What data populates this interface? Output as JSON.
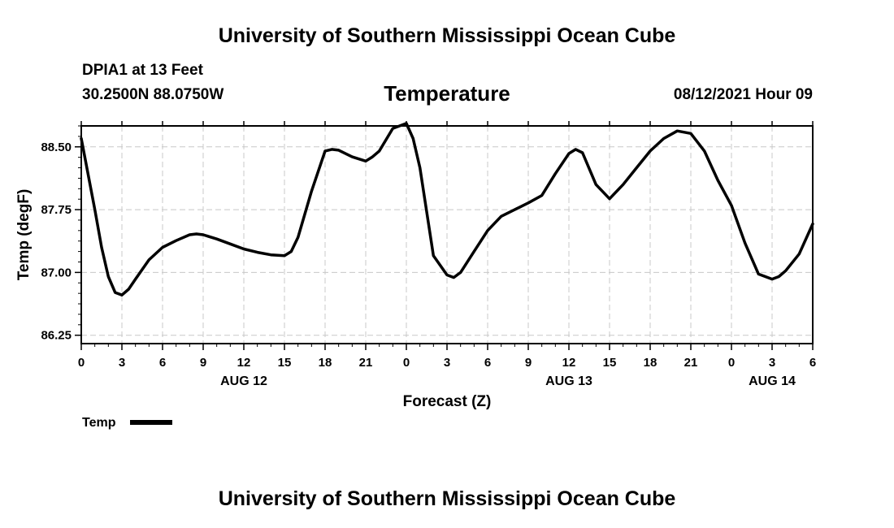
{
  "header": {
    "title": "University of Southern Mississippi Ocean Cube"
  },
  "station": {
    "name": "DPIA1 at 13 Feet",
    "coords": "30.2500N  88.0750W"
  },
  "issued": "08/12/2021 Hour 09",
  "footer": {
    "title": "University of Southern Mississippi Ocean Cube"
  },
  "chart_data": {
    "type": "line",
    "title": "Temperature",
    "xlabel": "Forecast (Z)",
    "ylabel": "Temp (degF)",
    "xlim": [
      0,
      54
    ],
    "ylim": [
      86.15,
      88.75
    ],
    "yticks": [
      86.25,
      87.0,
      87.75,
      88.5
    ],
    "ytick_labels": [
      "86.25",
      "87.00",
      "87.75",
      "88.50"
    ],
    "xticks": [
      0,
      3,
      6,
      9,
      12,
      15,
      18,
      21,
      24,
      27,
      30,
      33,
      36,
      39,
      42,
      45,
      48,
      51,
      54
    ],
    "xtick_labels": [
      "0",
      "3",
      "6",
      "9",
      "12",
      "15",
      "18",
      "21",
      "0",
      "3",
      "6",
      "9",
      "12",
      "15",
      "18",
      "21",
      "0",
      "3",
      "6"
    ],
    "day_labels": [
      {
        "x": 12,
        "label": "AUG 12"
      },
      {
        "x": 36,
        "label": "AUG 13"
      },
      {
        "x": 51,
        "label": "AUG 14"
      }
    ],
    "grid": true,
    "legend": {
      "position": "bottom-left",
      "entries": [
        {
          "name": "Temp",
          "color": "#000000"
        }
      ]
    },
    "series": [
      {
        "name": "Temp",
        "color": "#000000",
        "x": [
          0,
          1,
          1.5,
          2,
          2.5,
          3,
          3.5,
          4,
          5,
          6,
          7,
          8,
          8.5,
          9,
          10,
          11,
          12,
          13,
          14,
          15,
          15.5,
          16,
          17,
          18,
          18.5,
          19,
          20,
          21,
          21.5,
          22,
          23,
          24,
          24.5,
          25,
          26,
          27,
          27.5,
          28,
          29,
          30,
          31,
          32,
          33,
          34,
          35,
          36,
          36.5,
          37,
          38,
          39,
          40,
          41,
          42,
          43,
          44,
          45,
          46,
          47,
          48,
          49,
          50,
          51,
          51.5,
          52,
          53,
          54
        ],
        "y": [
          88.6,
          87.75,
          87.3,
          86.95,
          86.76,
          86.73,
          86.8,
          86.92,
          87.15,
          87.3,
          87.38,
          87.45,
          87.46,
          87.45,
          87.4,
          87.34,
          87.28,
          87.24,
          87.21,
          87.2,
          87.25,
          87.42,
          87.97,
          88.45,
          88.47,
          88.46,
          88.38,
          88.33,
          88.38,
          88.45,
          88.72,
          88.78,
          88.6,
          88.25,
          87.2,
          86.97,
          86.94,
          87.0,
          87.25,
          87.5,
          87.67,
          87.75,
          87.83,
          87.92,
          88.18,
          88.42,
          88.47,
          88.43,
          88.05,
          87.88,
          88.05,
          88.25,
          88.45,
          88.6,
          88.69,
          88.66,
          88.45,
          88.1,
          87.8,
          87.35,
          86.98,
          86.92,
          86.95,
          87.02,
          87.22,
          87.58
        ]
      }
    ]
  }
}
